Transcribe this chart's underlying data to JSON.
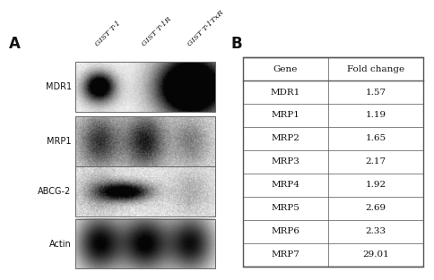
{
  "panel_a_label": "A",
  "panel_b_label": "B",
  "col_labels": [
    "Gene",
    "Fold change"
  ],
  "genes": [
    "MDR1",
    "MRP1",
    "MRP2",
    "MRP3",
    "MRP4",
    "MRP5",
    "MRP6",
    "MRP7"
  ],
  "fold_changes": [
    "1.57",
    "1.19",
    "1.65",
    "2.17",
    "1.92",
    "2.69",
    "2.33",
    "29.01"
  ],
  "blot_labels": [
    "MDR1",
    "MRP1",
    "ABCG-2",
    "Actin"
  ],
  "lane_labels": [
    "GIST T-1",
    "GIST T-1R",
    "GIST T-1TxR"
  ],
  "background_color": "#ffffff",
  "table_border_color": "#555555",
  "text_color": "#111111",
  "header_fontsize": 7.5,
  "cell_fontsize": 7.5,
  "blot_label_fontsize": 7.0,
  "lane_label_fontsize": 6.0,
  "panel_label_fontsize": 12
}
